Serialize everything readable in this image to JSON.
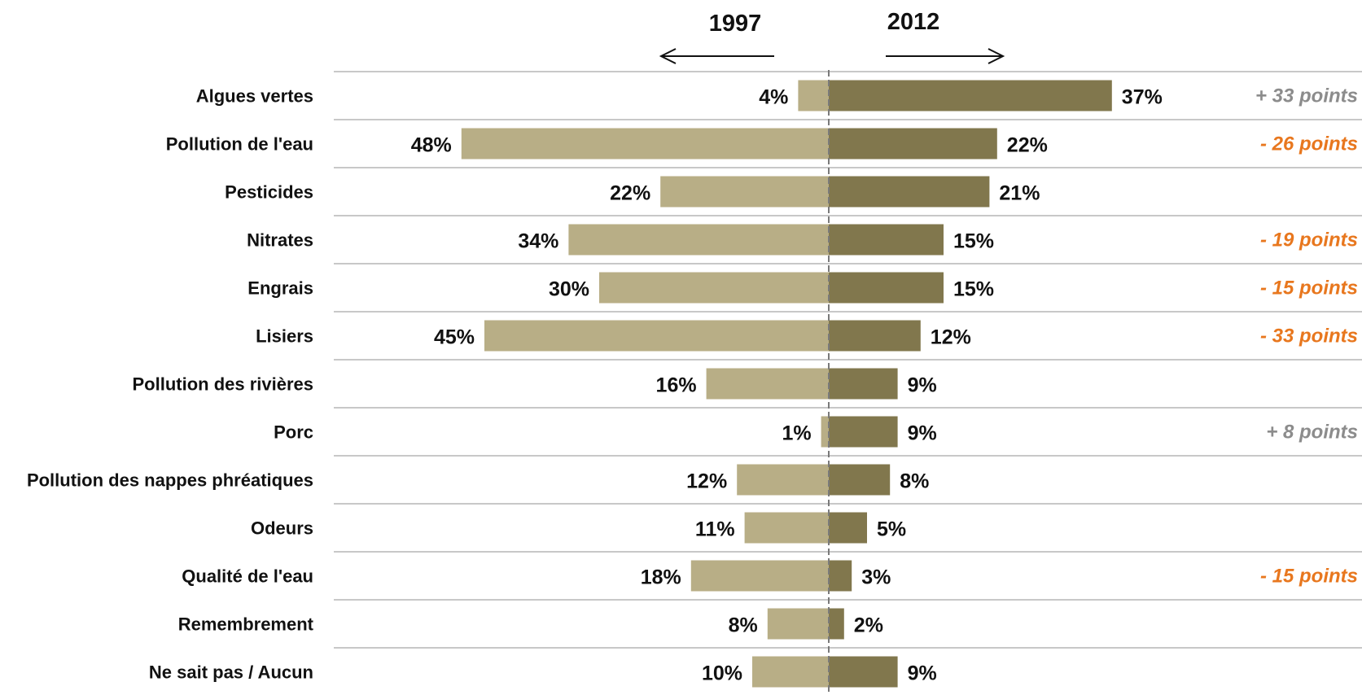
{
  "chart_data": {
    "type": "bar",
    "orientation": "horizontal-diverging",
    "categories": [
      "Algues vertes",
      "Pollution de l'eau",
      "Pesticides",
      "Nitrates",
      "Engrais",
      "Lisiers",
      "Pollution des rivières",
      "Porc",
      "Pollution des nappes phréatiques",
      "Odeurs",
      "Qualité de l'eau",
      "Remembrement",
      "Ne sait  pas / Aucun"
    ],
    "series": [
      {
        "name": "1997",
        "color": "#b8ae86",
        "direction": "left",
        "values": [
          4,
          48,
          22,
          34,
          30,
          45,
          16,
          1,
          12,
          11,
          18,
          8,
          10
        ],
        "labels": [
          "4%",
          "48%",
          "22%",
          "34%",
          "30%",
          "45%",
          "16%",
          "1%",
          "12%",
          "11%",
          "18%",
          "8%",
          "10%"
        ]
      },
      {
        "name": "2012",
        "color": "#81774d",
        "direction": "right",
        "values": [
          37,
          22,
          21,
          15,
          15,
          12,
          9,
          9,
          8,
          5,
          3,
          2,
          9
        ],
        "labels": [
          "37%",
          "22%",
          "21%",
          "15%",
          "15%",
          "12%",
          "9%",
          "9%",
          "8%",
          "5%",
          "3%",
          "2%",
          "9%"
        ]
      }
    ],
    "differences": [
      {
        "category": "Algues vertes",
        "text": "+ 33 points",
        "color": "#8c8c8c"
      },
      {
        "category": "Pollution de l'eau",
        "text": "- 26 points",
        "color": "#e8771e"
      },
      {
        "category": "Nitrates",
        "text": "- 19 points",
        "color": "#e8771e"
      },
      {
        "category": "Engrais",
        "text": "- 15 points",
        "color": "#e8771e"
      },
      {
        "category": "Lisiers",
        "text": "- 33 points",
        "color": "#e8771e"
      },
      {
        "category": "Porc",
        "text": "+ 8 points",
        "color": "#8c8c8c"
      },
      {
        "category": "Qualité de l'eau",
        "text": "- 15 points",
        "color": "#e8771e"
      }
    ],
    "axis_center_color": "#7a7a7a",
    "separator_color": "#c8c8c8",
    "arrow_color": "#111111"
  }
}
